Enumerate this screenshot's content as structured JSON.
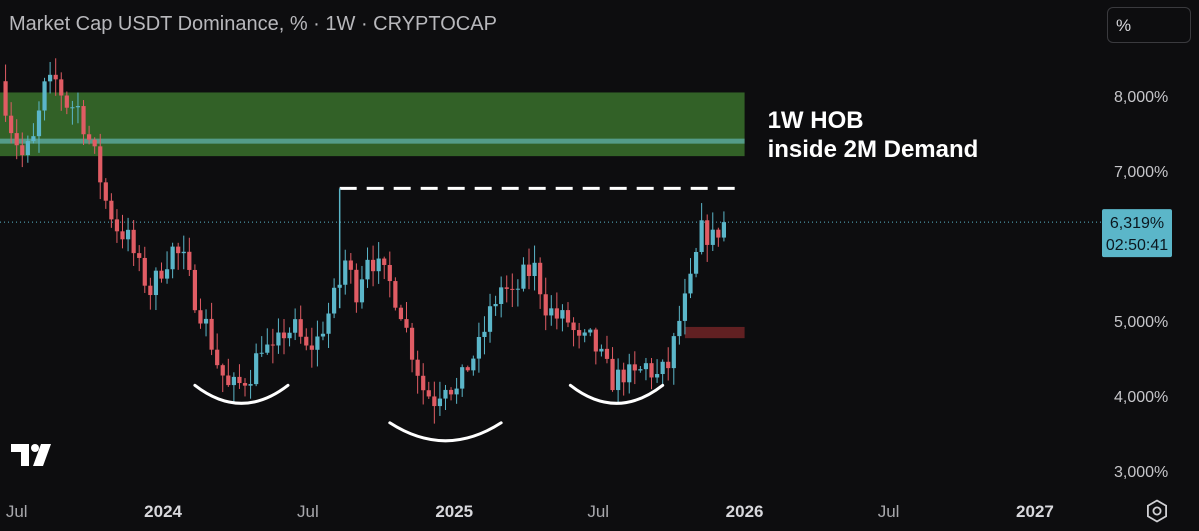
{
  "header": {
    "title": "Market Cap USDT Dominance, % · 1W · CRYPTOCAP",
    "unit_button": "%"
  },
  "colors": {
    "background": "#0d0d0f",
    "up_candle": "#5bb6c9",
    "down_candle": "#e05c64",
    "demand_zone": "#3d7a2e",
    "hob_line": "#5aa79a",
    "supply_zone": "#7a2628",
    "price_label": "#5bb6c9",
    "annotation": "#ffffff"
  },
  "price_label": {
    "value": "6,319%",
    "countdown": "02:50:41"
  },
  "icons": {
    "logo": "tradingview-logo-icon",
    "settings": "settings-gear-icon"
  },
  "chart_data": {
    "type": "candlestick",
    "title": "Market Cap USDT Dominance, % · 1W · CRYPTOCAP",
    "y_unit": "%",
    "y_range": [
      2.85,
      8.55
    ],
    "x_range": [
      "2023-06-10",
      "2027-03-20"
    ],
    "grid": false,
    "y_tick_labels": [
      "8,000%",
      "7,000%",
      "6,000%",
      "5,000%",
      "4,000%",
      "3,000%"
    ],
    "y_ticks": [
      8,
      7,
      6,
      5,
      4,
      3
    ],
    "x_tick_labels": [
      "Jul",
      "2024",
      "Jul",
      "2025",
      "Jul",
      "2026",
      "Jul",
      "2027"
    ],
    "x_ticks": [
      "2023-07-01",
      "2024-01-01",
      "2024-07-01",
      "2025-01-01",
      "2025-07-01",
      "2026-01-01",
      "2026-07-01",
      "2027-01-01"
    ],
    "bold_x_ticks": [
      "2024",
      "2025",
      "2026",
      "2027"
    ],
    "last_price": 6.319,
    "weekly_closes_interp": [
      [
        "2023-06-10",
        8.2
      ],
      [
        "2023-06-24",
        7.6
      ],
      [
        "2023-07-08",
        7.2
      ],
      [
        "2023-07-22",
        7.4
      ],
      [
        "2023-08-05",
        8.1
      ],
      [
        "2023-08-19",
        8.2
      ],
      [
        "2023-09-02",
        7.9
      ],
      [
        "2023-09-16",
        7.85
      ],
      [
        "2023-10-07",
        7.2
      ],
      [
        "2023-10-21",
        6.6
      ],
      [
        "2023-11-04",
        6.25
      ],
      [
        "2023-11-18",
        6.1
      ],
      [
        "2023-12-02",
        5.7
      ],
      [
        "2023-12-16",
        5.4
      ],
      [
        "2023-12-30",
        5.7
      ],
      [
        "2024-01-13",
        5.95
      ],
      [
        "2024-01-27",
        5.8
      ],
      [
        "2024-02-10",
        5.3
      ],
      [
        "2024-02-24",
        4.95
      ],
      [
        "2024-03-09",
        4.45
      ],
      [
        "2024-03-23",
        4.1
      ],
      [
        "2024-04-06",
        4.15
      ],
      [
        "2024-04-20",
        4.3
      ],
      [
        "2024-05-04",
        4.7
      ],
      [
        "2024-05-18",
        4.55
      ],
      [
        "2024-06-01",
        4.85
      ],
      [
        "2024-06-15",
        4.9
      ],
      [
        "2024-06-29",
        4.6
      ],
      [
        "2024-07-13",
        4.75
      ],
      [
        "2024-07-27",
        5.1
      ],
      [
        "2024-08-10",
        5.5
      ],
      [
        "2024-08-17",
        5.8
      ],
      [
        "2024-08-31",
        5.4
      ],
      [
        "2024-09-14",
        5.9
      ],
      [
        "2024-09-28",
        5.7
      ],
      [
        "2024-10-12",
        5.5
      ],
      [
        "2024-10-26",
        5.15
      ],
      [
        "2024-11-09",
        4.6
      ],
      [
        "2024-11-23",
        4.1
      ],
      [
        "2024-12-07",
        3.95
      ],
      [
        "2024-12-21",
        4.2
      ],
      [
        "2025-01-04",
        4.05
      ],
      [
        "2025-01-18",
        4.4
      ],
      [
        "2025-02-01",
        4.65
      ],
      [
        "2025-02-15",
        5.1
      ],
      [
        "2025-03-01",
        5.45
      ],
      [
        "2025-03-15",
        5.3
      ],
      [
        "2025-03-29",
        5.6
      ],
      [
        "2025-04-12",
        5.7
      ],
      [
        "2025-04-26",
        5.2
      ],
      [
        "2025-05-10",
        5.05
      ],
      [
        "2025-05-24",
        5.0
      ],
      [
        "2025-06-07",
        4.7
      ],
      [
        "2025-06-21",
        4.75
      ],
      [
        "2025-07-05",
        4.5
      ],
      [
        "2025-07-19",
        4.2
      ],
      [
        "2025-08-02",
        4.3
      ],
      [
        "2025-08-16",
        4.25
      ],
      [
        "2025-08-30",
        4.4
      ],
      [
        "2025-09-13",
        4.25
      ],
      [
        "2025-09-27",
        4.4
      ],
      [
        "2025-10-11",
        5.0
      ],
      [
        "2025-10-25",
        5.5
      ],
      [
        "2025-11-08",
        6.2
      ],
      [
        "2025-11-22",
        6.1
      ],
      [
        "2025-12-06",
        6.319
      ]
    ],
    "zones": [
      {
        "name": "demand",
        "from": "2023-06-10",
        "to": "2026-01-01",
        "y_low": 7.2,
        "y_high": 8.05
      },
      {
        "name": "hob_line",
        "from": "2023-06-10",
        "to": "2026-01-01",
        "y": 7.4
      },
      {
        "name": "supply_small",
        "from": "2025-10-18",
        "to": "2026-01-01",
        "y_low": 4.77,
        "y_high": 4.92
      }
    ],
    "resistance_dashed": {
      "from": "2024-08-10",
      "to": "2026-01-01",
      "y": 6.77
    },
    "arcs": [
      {
        "from": "2024-02-10",
        "to": "2024-06-06",
        "low": 3.9
      },
      {
        "from": "2024-10-12",
        "to": "2025-03-01",
        "low": 3.4
      },
      {
        "from": "2025-05-27",
        "to": "2025-09-20",
        "low": 3.9
      }
    ],
    "annotations": [
      "1W HOB",
      "inside 2M Demand"
    ]
  }
}
